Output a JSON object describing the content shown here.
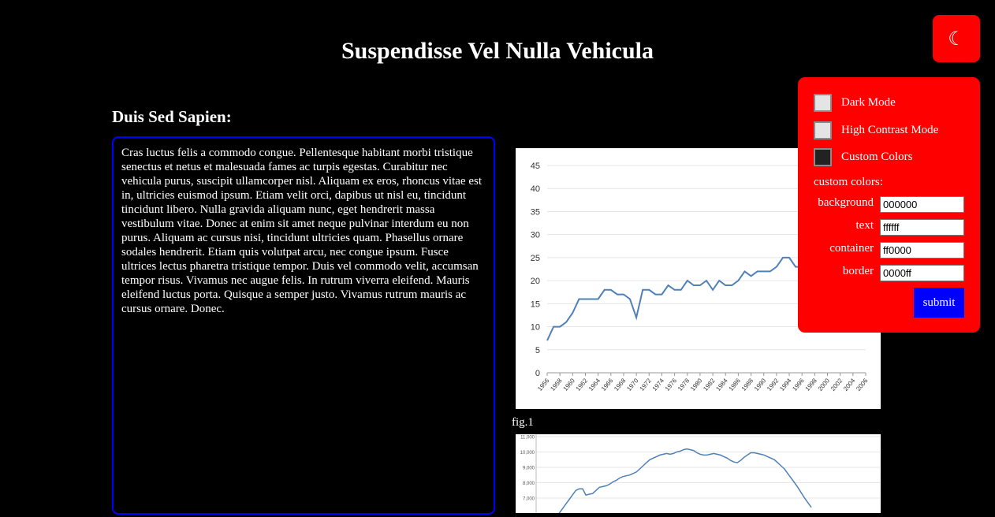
{
  "page": {
    "title": "Suspendisse Vel Nulla Vehicula"
  },
  "section": {
    "heading": "Duis Sed Sapien:",
    "body": "Cras luctus felis a commodo congue. Pellentesque habitant morbi tristique senectus et netus et malesuada fames ac turpis egestas. Curabitur nec vehicula purus, suscipit ullamcorper nisl. Aliquam ex eros, rhoncus vitae est in, ultricies euismod ipsum. Etiam velit orci, dapibus ut nisl eu, tincidunt tincidunt libero. Nulla gravida aliquam nunc, eget hendrerit massa vestibulum vitae. Donec at enim sit amet neque pulvinar interdum eu non purus. Aliquam ac cursus nisi, tincidunt ultricies quam. Phasellus ornare sodales hendrerit. Etiam quis volutpat arcu, nec congue ipsum. Fusce ultrices lectus pharetra tristique tempor. Duis vel commodo velit, accumsan tempor risus. Vivamus nec augue felis. In rutrum viverra eleifend. Mauris eleifend luctus porta. Quisque a semper justo. Vivamus rutrum mauris ac cursus ornare. Donec."
  },
  "figure1": {
    "caption": "fig.1"
  },
  "toggle": {
    "icon": "moon-icon",
    "glyph": "☾"
  },
  "settings": {
    "options": [
      {
        "label": "Dark Mode",
        "checked": false
      },
      {
        "label": "High Contrast Mode",
        "checked": false
      },
      {
        "label": "Custom Colors",
        "checked": true
      }
    ],
    "custom_label": "custom colors:",
    "fields": [
      {
        "label": "background",
        "value": "000000"
      },
      {
        "label": "text",
        "value": "ffffff"
      },
      {
        "label": "container",
        "value": "ff0000"
      },
      {
        "label": "border",
        "value": "0000ff"
      }
    ],
    "submit_label": "submit"
  },
  "colors": {
    "background": "#000000",
    "text": "#ffffff",
    "container": "#ff0000",
    "border": "#0000ff",
    "line": "#4f81b8"
  },
  "chart_data": [
    {
      "type": "line",
      "title": "",
      "xlabel": "",
      "ylabel": "",
      "ylim": [
        0,
        45
      ],
      "yticks": [
        0,
        5,
        10,
        15,
        20,
        25,
        30,
        35,
        40,
        45
      ],
      "xticks": [
        "1956",
        "1958",
        "1960",
        "1962",
        "1964",
        "1966",
        "1968",
        "1970",
        "1972",
        "1974",
        "1976",
        "1978",
        "1980",
        "1982",
        "1984",
        "1986",
        "1988",
        "1990",
        "1992",
        "1994",
        "1996",
        "1998",
        "2000",
        "2002",
        "2004",
        "2006"
      ],
      "x": [
        1956,
        1957,
        1958,
        1959,
        1960,
        1961,
        1962,
        1963,
        1964,
        1965,
        1966,
        1967,
        1968,
        1969,
        1970,
        1971,
        1972,
        1973,
        1974,
        1975,
        1976,
        1977,
        1978,
        1979,
        1980,
        1981,
        1982,
        1983,
        1984,
        1985,
        1986,
        1987,
        1988,
        1989,
        1990,
        1991,
        1992,
        1993,
        1994,
        1995,
        1996,
        1997,
        1998
      ],
      "series": [
        {
          "values": [
            7,
            10,
            10,
            11,
            13,
            16,
            16,
            16,
            16,
            18,
            18,
            17,
            17,
            16,
            12,
            18,
            18,
            17,
            17,
            19,
            18,
            18,
            20,
            19,
            19,
            20,
            18,
            20,
            19,
            19,
            20,
            22,
            21,
            22,
            22,
            22,
            23,
            25,
            25,
            23,
            23,
            25,
            25
          ]
        }
      ],
      "grid": true
    },
    {
      "type": "line",
      "title": "",
      "ylim": [
        6500,
        11000
      ],
      "yticks": [
        "7,000",
        "8,000",
        "9,000",
        "10,000",
        "11,000"
      ],
      "x_count": 76,
      "series": [
        {
          "values": [
            6000,
            6300,
            6600,
            6900,
            7200,
            7500,
            7600,
            7600,
            7200,
            7250,
            7300,
            7500,
            7700,
            7750,
            7800,
            7900,
            8050,
            8150,
            8300,
            8400,
            8450,
            8500,
            8600,
            8700,
            8900,
            9100,
            9300,
            9500,
            9600,
            9700,
            9800,
            9850,
            9900,
            9850,
            9900,
            10000,
            10050,
            10150,
            10200,
            10150,
            10100,
            9950,
            9850,
            9800,
            9800,
            9850,
            9900,
            9850,
            9800,
            9700,
            9600,
            9450,
            9350,
            9300,
            9450,
            9650,
            9800,
            9950,
            9950,
            9900,
            9850,
            9800,
            9700,
            9600,
            9500,
            9300,
            9100,
            8900,
            8600,
            8300,
            8000,
            7700,
            7350,
            7000,
            6700,
            6400
          ]
        }
      ],
      "grid": true
    }
  ]
}
